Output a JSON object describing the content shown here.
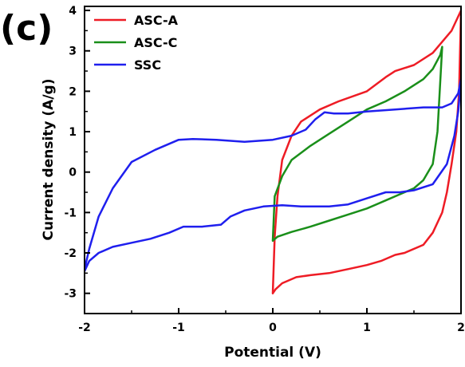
{
  "panel_label": "(c)",
  "chart_data": {
    "type": "line",
    "title": "",
    "xlabel": "Potential (V)",
    "ylabel": "Current density (A/g)",
    "xlim": [
      -2,
      2
    ],
    "ylim": [
      -3.5,
      4.1
    ],
    "xticks": [
      -2,
      -1,
      0,
      1,
      2
    ],
    "yticks": [
      -3,
      -2,
      -1,
      0,
      1,
      2,
      3,
      4
    ],
    "grid": false,
    "legend_position": "top-left",
    "series": [
      {
        "name": "ASC-A",
        "color": "#ee1c25",
        "x": [
          0,
          0.02,
          0.05,
          0.1,
          0.2,
          0.3,
          0.5,
          0.7,
          1.0,
          1.2,
          1.3,
          1.5,
          1.7,
          1.9,
          2.0,
          1.98,
          1.95,
          1.9,
          1.85,
          1.8,
          1.7,
          1.6,
          1.4,
          1.3,
          1.15,
          1.0,
          0.8,
          0.6,
          0.4,
          0.25,
          0.1,
          0.03,
          0
        ],
        "y": [
          -3.0,
          -1.6,
          -0.6,
          0.3,
          0.9,
          1.25,
          1.55,
          1.75,
          2.0,
          2.35,
          2.5,
          2.65,
          2.95,
          3.5,
          4.0,
          2.0,
          1.0,
          0.2,
          -0.5,
          -1.0,
          -1.5,
          -1.8,
          -2.0,
          -2.05,
          -2.2,
          -2.3,
          -2.4,
          -2.5,
          -2.55,
          -2.6,
          -2.75,
          -2.9,
          -3.0
        ]
      },
      {
        "name": "ASC-C",
        "color": "#1a8f1a",
        "x": [
          0,
          0.02,
          0.1,
          0.2,
          0.4,
          0.6,
          0.8,
          1.0,
          1.2,
          1.4,
          1.6,
          1.7,
          1.78,
          1.8,
          1.75,
          1.7,
          1.6,
          1.5,
          1.4,
          1.2,
          1.0,
          0.8,
          0.6,
          0.4,
          0.2,
          0.05,
          0
        ],
        "y": [
          -1.7,
          -0.6,
          -0.1,
          0.3,
          0.65,
          0.95,
          1.25,
          1.55,
          1.75,
          2.0,
          2.3,
          2.55,
          2.9,
          3.1,
          1.0,
          0.2,
          -0.2,
          -0.4,
          -0.5,
          -0.7,
          -0.9,
          -1.05,
          -1.2,
          -1.35,
          -1.48,
          -1.6,
          -1.7
        ]
      },
      {
        "name": "SSC",
        "color": "#1f1fee",
        "x": [
          -2,
          -1.95,
          -1.85,
          -1.7,
          -1.5,
          -1.25,
          -1.0,
          -0.85,
          -0.6,
          -0.3,
          0,
          0.2,
          0.35,
          0.45,
          0.55,
          0.65,
          0.8,
          1.0,
          1.3,
          1.6,
          1.8,
          1.9,
          1.97,
          2.0,
          1.99,
          1.97,
          1.93,
          1.85,
          1.7,
          1.5,
          1.35,
          1.2,
          1.0,
          0.8,
          0.6,
          0.3,
          0.1,
          -0.1,
          -0.3,
          -0.45,
          -0.55,
          -0.75,
          -0.95,
          -1.1,
          -1.3,
          -1.5,
          -1.7,
          -1.85,
          -1.95,
          -2.0
        ],
        "y": [
          -2.4,
          -1.9,
          -1.1,
          -0.4,
          0.25,
          0.55,
          0.8,
          0.82,
          0.8,
          0.75,
          0.8,
          0.9,
          1.05,
          1.3,
          1.48,
          1.45,
          1.45,
          1.5,
          1.55,
          1.6,
          1.6,
          1.7,
          1.95,
          2.3,
          2.0,
          1.5,
          0.9,
          0.2,
          -0.3,
          -0.45,
          -0.5,
          -0.5,
          -0.65,
          -0.8,
          -0.85,
          -0.85,
          -0.82,
          -0.85,
          -0.95,
          -1.1,
          -1.3,
          -1.35,
          -1.35,
          -1.5,
          -1.65,
          -1.75,
          -1.85,
          -2.0,
          -2.2,
          -2.45
        ]
      }
    ]
  }
}
